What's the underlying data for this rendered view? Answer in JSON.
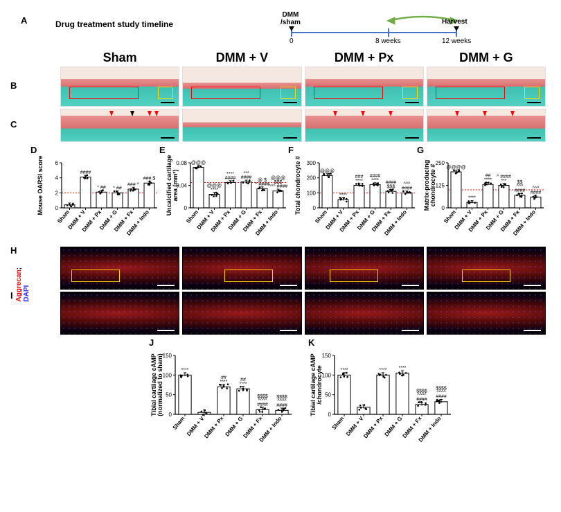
{
  "panelA": {
    "label": "A",
    "title": "Drug treatment study timeline",
    "top_labels": [
      "DMM\n/sham",
      "",
      "Harvest"
    ],
    "ticks": [
      "0",
      "8 weeks",
      "12 weeks"
    ]
  },
  "headers": [
    "Sham",
    "DMM + V",
    "DMM + Px",
    "DMM + G"
  ],
  "panelB": {
    "label": "B"
  },
  "panelC": {
    "label": "C"
  },
  "panelD": {
    "label": "D",
    "ylabel": "Mouse OARSI score",
    "ylim": [
      0,
      6
    ],
    "ytick": 2,
    "groups": [
      "Sham",
      "DMM + V",
      "DMM + Px",
      "DMM + G",
      "DMM + Fx",
      "DMM + Indo"
    ],
    "values": [
      0.4,
      4.1,
      2.1,
      2.0,
      2.5,
      3.3
    ],
    "sig": [
      "",
      "####",
      "* ##",
      "* ##",
      "### ^",
      "### $"
    ],
    "ref_line": 2,
    "ref_color": "#ff0000"
  },
  "panelE": {
    "label": "E",
    "ylabel": "Uncalcified cartilage\narea (mm²)",
    "ylim": [
      0,
      0.08
    ],
    "ytick": 0.04,
    "groups": [
      "Sham",
      "DMM + V",
      "DMM + Px",
      "DMM + G",
      "DMM + Fx",
      "DMM + Indo"
    ],
    "values": [
      0.072,
      0.024,
      0.045,
      0.046,
      0.034,
      0.03
    ],
    "sig": [
      "@@@",
      "@@@\n****",
      "****\n####",
      "***\n####",
      "@ $\n^ ####",
      "@@@\n$$$\n^^^ ####"
    ],
    "ref_line": 0.045,
    "ref_color": "#ff0000"
  },
  "panelF": {
    "label": "F",
    "ylabel": "Total chondrocyte #",
    "ylim": [
      0,
      300
    ],
    "ytick": 100,
    "groups": [
      "Sham",
      "DMM + V",
      "DMM + Px",
      "DMM + G",
      "DMM + Fx",
      "DMM + Indo"
    ],
    "values": [
      215,
      55,
      150,
      155,
      110,
      100
    ],
    "sig": [
      "@@@",
      "****",
      "###\n****",
      "####\n****",
      "####\n$$$",
      "^^^\n####"
    ],
    "ref_line": 100,
    "ref_color": "#ff0000"
  },
  "panelG": {
    "label": "G",
    "ylabel": "Matrix-producing\nchondrocyte #",
    "ylim": [
      0,
      250
    ],
    "ytick": 125,
    "groups": [
      "Sham",
      "DMM + V",
      "DMM + Px",
      "DMM + G",
      "DMM + Fx",
      "DMM + Indo"
    ],
    "values": [
      200,
      30,
      130,
      125,
      70,
      60
    ],
    "sig": [
      "@@@@",
      "****",
      "##\n****",
      "^ ####\n***",
      "$$\n^^^\n####",
      "^^^\n####"
    ],
    "ref_line": 100,
    "ref_color": "#ff0000"
  },
  "panelH": {
    "label": "H",
    "stain_label": "Aggrecan; DAPI"
  },
  "panelI": {
    "label": "I"
  },
  "panelJ": {
    "label": "J",
    "ylabel": "Tibial cartilage cAMP\n(normalized to sham)",
    "ylim": [
      0,
      150
    ],
    "ytick": 50,
    "groups": [
      "Sham",
      "DMM + V",
      "DMM + Px",
      "DMM + G",
      "DMM + Fx",
      "DMM + Indo"
    ],
    "values": [
      100,
      5,
      70,
      65,
      12,
      10
    ],
    "sig": [
      "****",
      "",
      "##\n****",
      "##\n****",
      "$$$$\n^^^^\n####",
      "$$$$\n^^^^\n####"
    ]
  },
  "panelK": {
    "label": "K",
    "ylabel": "Tibial cartilage cAMP\n/chondrocyte",
    "ylim": [
      0,
      150
    ],
    "ytick": 50,
    "groups": [
      "Sham",
      "DMM + V",
      "DMM + Px",
      "DMM + G",
      "DMM + Fx",
      "DMM + Indo"
    ],
    "values": [
      100,
      18,
      100,
      105,
      25,
      32
    ],
    "sig": [
      "****",
      "",
      "****",
      "****",
      "$$$$\n^^^^\n####",
      "$$$$\n^^^^\n####"
    ]
  },
  "colors": {
    "bar_fill": "#ffffff",
    "bar_stroke": "#000000",
    "scatter": "#000000",
    "axis": "#000000"
  }
}
